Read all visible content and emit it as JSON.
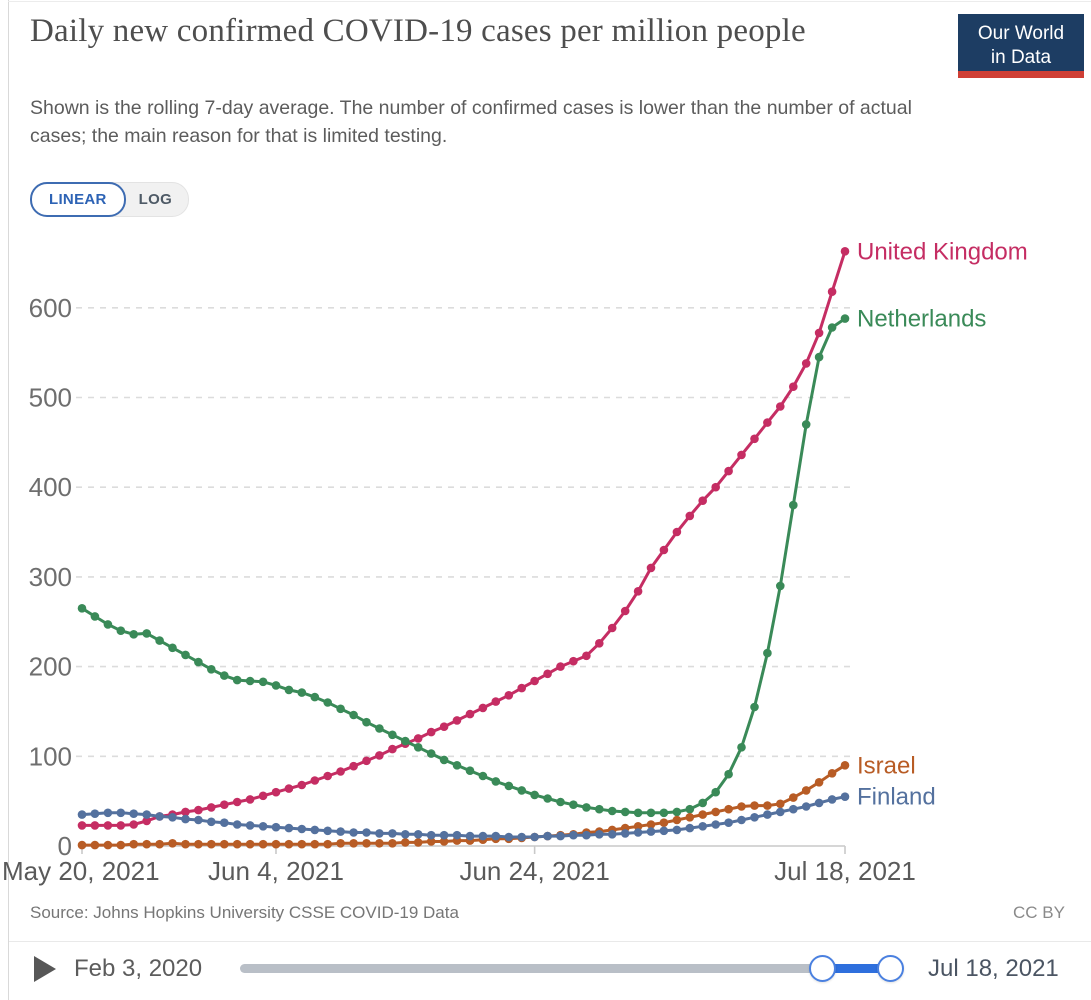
{
  "header": {
    "title": "Daily new confirmed COVID-19 cases per million people",
    "subtitle": "Shown is the rolling 7-day average. The number of confirmed cases is lower than the number of actual cases; the main reason for that is limited testing.",
    "logo": {
      "line1": "Our World",
      "line2": "in Data"
    }
  },
  "controls": {
    "linear_label": "LINEAR",
    "log_label": "LOG"
  },
  "chart_data": {
    "type": "line",
    "title": "Daily new confirmed COVID-19 cases per million people",
    "xlabel": "",
    "ylabel": "",
    "x_start": "May 20, 2021",
    "x_end": "Jul 18, 2021",
    "n_points": 60,
    "x_interval": "daily",
    "x_ticks": [
      {
        "label": "May 20, 2021",
        "day": 0
      },
      {
        "label": "Jun 4, 2021",
        "day": 15
      },
      {
        "label": "Jun 24, 2021",
        "day": 35
      },
      {
        "label": "Jul 18, 2021",
        "day": 59
      }
    ],
    "y_ticks": [
      0,
      100,
      200,
      300,
      400,
      500,
      600
    ],
    "ylim": [
      0,
      690
    ],
    "grid": true,
    "legend_position": "end-of-line",
    "marker_every_point": true,
    "series": [
      {
        "name": "United Kingdom",
        "color": "#c52d63",
        "values": [
          23,
          23,
          23,
          23,
          24,
          28,
          33,
          35,
          38,
          40,
          43,
          46,
          49,
          52,
          56,
          60,
          64,
          68,
          73,
          78,
          83,
          89,
          95,
          101,
          108,
          114,
          120,
          127,
          133,
          140,
          147,
          154,
          161,
          168,
          176,
          184,
          192,
          200,
          206,
          212,
          226,
          243,
          262,
          284,
          310,
          330,
          350,
          368,
          385,
          400,
          418,
          436,
          454,
          472,
          490,
          512,
          538,
          572,
          618,
          663
        ]
      },
      {
        "name": "Netherlands",
        "color": "#3a8a58",
        "values": [
          265,
          256,
          247,
          240,
          236,
          237,
          229,
          221,
          213,
          205,
          197,
          190,
          185,
          184,
          183,
          179,
          174,
          171,
          166,
          160,
          153,
          146,
          138,
          131,
          124,
          117,
          110,
          103,
          96,
          90,
          84,
          78,
          72,
          67,
          62,
          57,
          53,
          49,
          46,
          43,
          41,
          39,
          38,
          37,
          37,
          37,
          38,
          41,
          48,
          60,
          80,
          110,
          155,
          215,
          290,
          380,
          470,
          545,
          578,
          588
        ]
      },
      {
        "name": "Israel",
        "color": "#b85c25",
        "values": [
          1,
          1,
          1,
          1,
          2,
          2,
          2,
          3,
          2,
          2,
          2,
          2,
          2,
          2,
          2,
          2,
          2,
          2,
          2,
          2,
          3,
          3,
          3,
          3,
          3,
          4,
          4,
          5,
          5,
          6,
          6,
          7,
          8,
          8,
          9,
          10,
          11,
          12,
          13,
          15,
          16,
          18,
          20,
          22,
          24,
          26,
          29,
          32,
          35,
          38,
          41,
          44,
          45,
          45,
          47,
          54,
          62,
          71,
          81,
          90
        ]
      },
      {
        "name": "Finland",
        "color": "#54719e",
        "values": [
          35,
          36,
          37,
          37,
          36,
          35,
          33,
          32,
          30,
          29,
          27,
          26,
          24,
          23,
          22,
          21,
          20,
          19,
          18,
          17,
          16,
          15,
          15,
          14,
          14,
          13,
          13,
          12,
          12,
          12,
          11,
          11,
          11,
          10,
          10,
          10,
          11,
          11,
          12,
          12,
          13,
          13,
          14,
          15,
          16,
          17,
          18,
          20,
          22,
          24,
          26,
          29,
          32,
          35,
          38,
          41,
          44,
          48,
          52,
          55
        ]
      }
    ]
  },
  "footer": {
    "source": "Source: Johns Hopkins University CSSE COVID-19 Data",
    "license": "CC BY"
  },
  "timeline": {
    "start_label": "Feb 3, 2020",
    "end_label": "Jul 18, 2021"
  }
}
